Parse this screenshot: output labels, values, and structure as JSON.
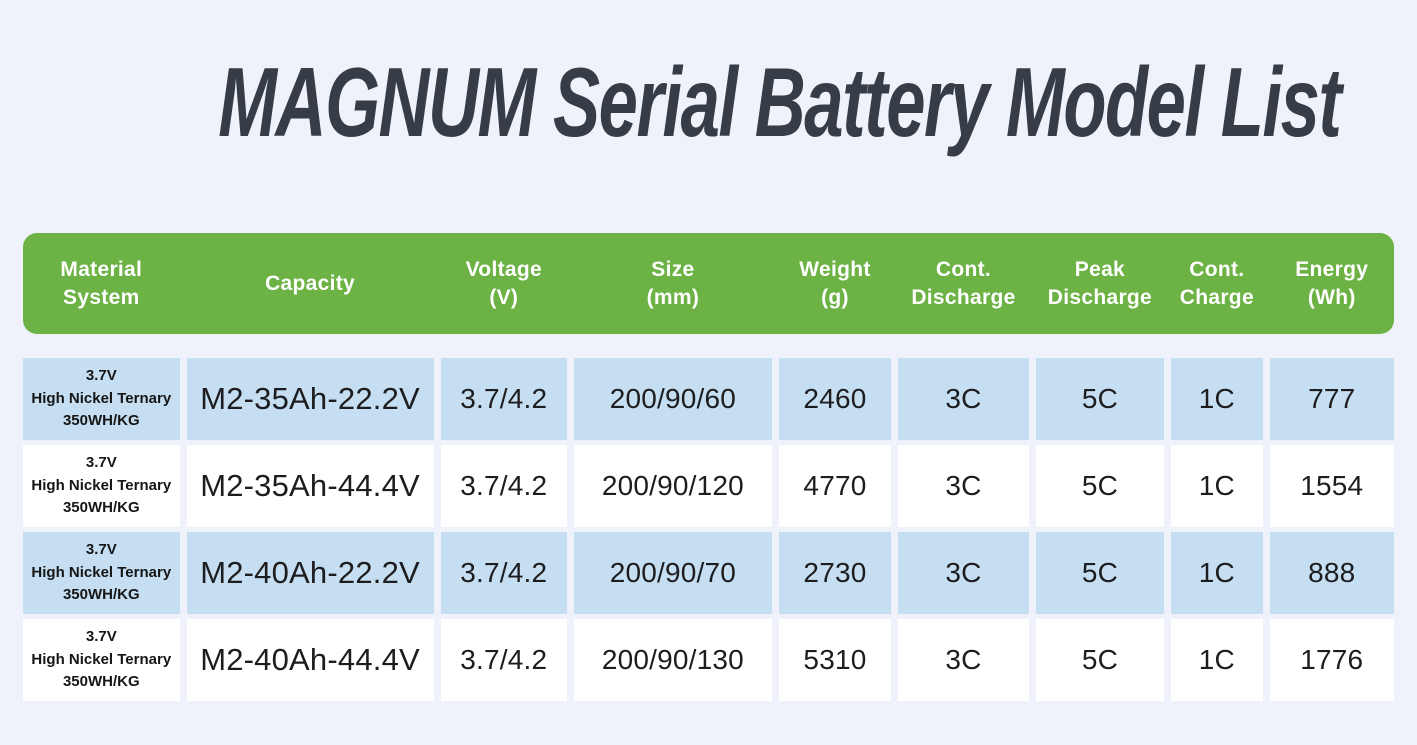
{
  "page": {
    "title": "MAGNUM Serial Battery Model List",
    "background": "#eff2fb"
  },
  "colors": {
    "header_green": "#6cb244",
    "row_blue": "#c5def1",
    "row_white": "#ffffff",
    "title_text": "#363d47",
    "header_text": "#ffffff",
    "cell_text": "#1d1d1f"
  },
  "table": {
    "columns": [
      {
        "id": "material",
        "label": "Material\nSystem"
      },
      {
        "id": "capacity",
        "label": "Capacity"
      },
      {
        "id": "voltage",
        "label": "Voltage\n(V)"
      },
      {
        "id": "size",
        "label": "Size\n(mm)"
      },
      {
        "id": "weight",
        "label": "Weight\n(g)"
      },
      {
        "id": "cont_discharge",
        "label": "Cont.\nDischarge"
      },
      {
        "id": "peak_discharge",
        "label": "Peak\nDischarge"
      },
      {
        "id": "cont_charge",
        "label": "Cont.\nCharge"
      },
      {
        "id": "energy",
        "label": "Energy\n(Wh)"
      }
    ],
    "rows": [
      {
        "material": "3.7V\nHigh Nickel Ternary\n350WH/KG",
        "capacity": "M2-35Ah-22.2V",
        "voltage": "3.7/4.2",
        "size": "200/90/60",
        "weight": "2460",
        "cont_discharge": "3C",
        "peak_discharge": "5C",
        "cont_charge": "1C",
        "energy": "777"
      },
      {
        "material": "3.7V\nHigh Nickel Ternary\n350WH/KG",
        "capacity": "M2-35Ah-44.4V",
        "voltage": "3.7/4.2",
        "size": "200/90/120",
        "weight": "4770",
        "cont_discharge": "3C",
        "peak_discharge": "5C",
        "cont_charge": "1C",
        "energy": "1554"
      },
      {
        "material": "3.7V\nHigh Nickel Ternary\n350WH/KG",
        "capacity": "M2-40Ah-22.2V",
        "voltage": "3.7/4.2",
        "size": "200/90/70",
        "weight": "2730",
        "cont_discharge": "3C",
        "peak_discharge": "5C",
        "cont_charge": "1C",
        "energy": "888"
      },
      {
        "material": "3.7V\nHigh Nickel Ternary\n350WH/KG",
        "capacity": "M2-40Ah-44.4V",
        "voltage": "3.7/4.2",
        "size": "200/90/130",
        "weight": "5310",
        "cont_discharge": "3C",
        "peak_discharge": "5C",
        "cont_charge": "1C",
        "energy": "1776"
      }
    ]
  }
}
